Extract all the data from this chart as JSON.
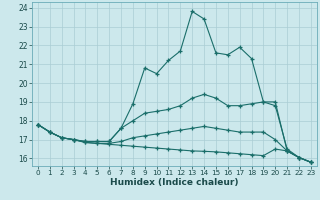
{
  "xlabel": "Humidex (Indice chaleur)",
  "background_color": "#cce8ec",
  "grid_color": "#aacdd4",
  "line_color": "#1a6e6a",
  "xlim": [
    -0.5,
    23.5
  ],
  "ylim": [
    15.6,
    24.3
  ],
  "xticks": [
    0,
    1,
    2,
    3,
    4,
    5,
    6,
    7,
    8,
    9,
    10,
    11,
    12,
    13,
    14,
    15,
    16,
    17,
    18,
    19,
    20,
    21,
    22,
    23
  ],
  "yticks": [
    16,
    17,
    18,
    19,
    20,
    21,
    22,
    23,
    24
  ],
  "line1_x": [
    0,
    1,
    2,
    3,
    4,
    5,
    6,
    7,
    8,
    9,
    10,
    11,
    12,
    13,
    14,
    15,
    16,
    17,
    18,
    19,
    20,
    21,
    22,
    23
  ],
  "line1_y": [
    17.8,
    17.4,
    17.1,
    17.0,
    16.9,
    16.9,
    16.9,
    17.6,
    18.9,
    20.8,
    20.5,
    21.2,
    21.7,
    23.8,
    23.4,
    21.6,
    21.5,
    21.9,
    21.3,
    19.0,
    18.8,
    16.5,
    16.05,
    15.8
  ],
  "line2_x": [
    0,
    1,
    2,
    3,
    4,
    5,
    6,
    7,
    8,
    9,
    10,
    11,
    12,
    13,
    14,
    15,
    16,
    17,
    18,
    19,
    20,
    21,
    22,
    23
  ],
  "line2_y": [
    17.8,
    17.4,
    17.1,
    17.0,
    16.9,
    16.9,
    16.9,
    17.6,
    18.0,
    18.4,
    18.5,
    18.6,
    18.8,
    19.2,
    19.4,
    19.2,
    18.8,
    18.8,
    18.9,
    19.0,
    19.0,
    16.4,
    16.05,
    15.8
  ],
  "line3_x": [
    0,
    1,
    2,
    3,
    4,
    5,
    6,
    7,
    8,
    9,
    10,
    11,
    12,
    13,
    14,
    15,
    16,
    17,
    18,
    19,
    20,
    21,
    22,
    23
  ],
  "line3_y": [
    17.8,
    17.4,
    17.1,
    17.0,
    16.85,
    16.8,
    16.8,
    16.9,
    17.1,
    17.2,
    17.3,
    17.4,
    17.5,
    17.6,
    17.7,
    17.6,
    17.5,
    17.4,
    17.4,
    17.4,
    17.0,
    16.4,
    16.05,
    15.8
  ],
  "line4_x": [
    0,
    1,
    2,
    3,
    4,
    5,
    6,
    7,
    8,
    9,
    10,
    11,
    12,
    13,
    14,
    15,
    16,
    17,
    18,
    19,
    20,
    21,
    22,
    23
  ],
  "line4_y": [
    17.8,
    17.4,
    17.1,
    17.0,
    16.85,
    16.8,
    16.75,
    16.7,
    16.65,
    16.6,
    16.55,
    16.5,
    16.45,
    16.4,
    16.38,
    16.35,
    16.3,
    16.25,
    16.2,
    16.15,
    16.5,
    16.4,
    16.05,
    15.8
  ]
}
